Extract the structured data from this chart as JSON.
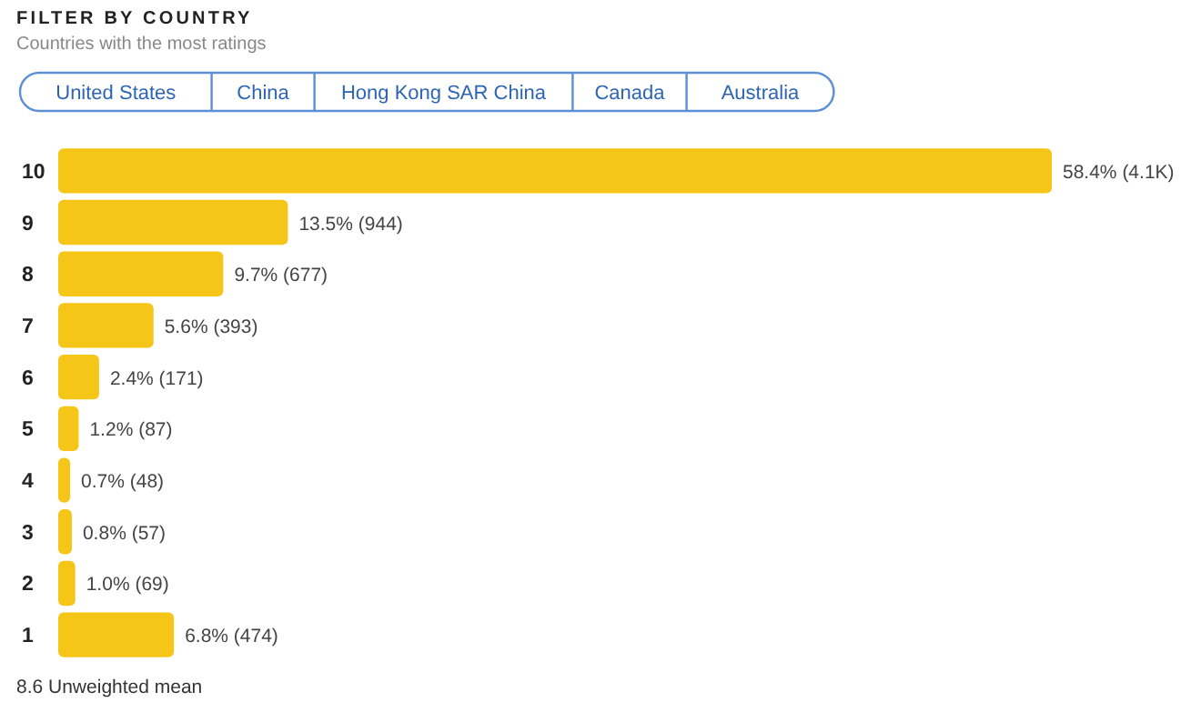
{
  "chart_data": {
    "type": "bar",
    "orientation": "horizontal",
    "title": "FILTER BY COUNTRY",
    "subtitle": "Countries with the most ratings",
    "categories": [
      "10",
      "9",
      "8",
      "7",
      "6",
      "5",
      "4",
      "3",
      "2",
      "1"
    ],
    "values": [
      58.4,
      13.5,
      9.7,
      5.6,
      2.4,
      1.2,
      0.7,
      0.8,
      1.0,
      6.8
    ],
    "value_labels": [
      "58.4% (4.1K)",
      "13.5% (944)",
      "9.7% (677)",
      "5.6% (393)",
      "2.4% (171)",
      "1.2% (87)",
      "0.7% (48)",
      "0.8% (57)",
      "1.0% (69)",
      "6.8% (474)"
    ],
    "color": "#f5c518",
    "tick_labels": "y",
    "annotations": [
      "United States",
      "China",
      "Hong Kong SAR China",
      "Canada",
      "Australia",
      "8.6 Unweighted mean"
    ]
  }
}
